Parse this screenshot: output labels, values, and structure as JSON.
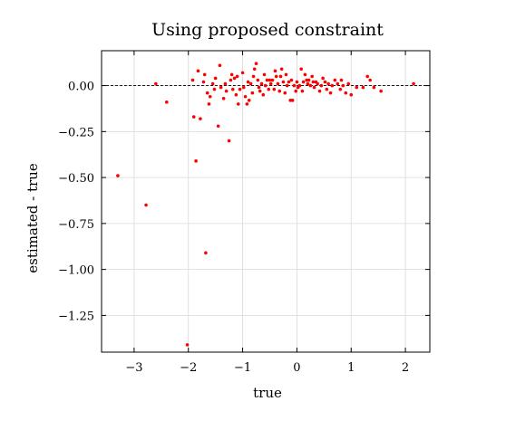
{
  "chart_data": {
    "type": "scatter",
    "title": "Using proposed constraint",
    "xlabel": "true",
    "ylabel": "estimated - true",
    "xlim": [
      -3.6,
      2.45
    ],
    "ylim": [
      -1.45,
      0.19
    ],
    "xticks": [
      -3,
      -2,
      -1,
      0,
      1,
      2
    ],
    "xtick_labels": [
      "−3",
      "−2",
      "−1",
      "0",
      "1",
      "2"
    ],
    "yticks": [
      0.0,
      -0.25,
      -0.5,
      -0.75,
      -1.0,
      -1.25
    ],
    "ytick_labels": [
      "0.00",
      "−0.25",
      "−0.50",
      "−0.75",
      "−1.00",
      "−1.25"
    ],
    "grid": true,
    "reference_line": {
      "y": 0,
      "style": "dashed",
      "color": "#000000"
    },
    "marker_color": "#ff0000",
    "series": [
      {
        "points": [
          [
            -3.3,
            -0.49
          ],
          [
            -2.78,
            -0.65
          ],
          [
            -2.6,
            0.01
          ],
          [
            -2.4,
            -0.09
          ],
          [
            -2.02,
            -1.41
          ],
          [
            -1.92,
            0.03
          ],
          [
            -1.9,
            -0.17
          ],
          [
            -1.86,
            -0.41
          ],
          [
            -1.82,
            0.08
          ],
          [
            -1.78,
            -0.18
          ],
          [
            -1.72,
            0.02
          ],
          [
            -1.7,
            0.06
          ],
          [
            -1.68,
            -0.91
          ],
          [
            -1.65,
            -0.04
          ],
          [
            -1.62,
            -0.1
          ],
          [
            -1.6,
            -0.06
          ],
          [
            -1.55,
            0.01
          ],
          [
            -1.52,
            -0.02
          ],
          [
            -1.5,
            0.04
          ],
          [
            -1.45,
            -0.22
          ],
          [
            -1.42,
            0.11
          ],
          [
            -1.4,
            -0.01
          ],
          [
            -1.35,
            -0.07
          ],
          [
            -1.32,
            0.01
          ],
          [
            -1.3,
            -0.03
          ],
          [
            -1.25,
            -0.3
          ],
          [
            -1.22,
            0.03
          ],
          [
            -1.2,
            0.06
          ],
          [
            -1.18,
            -0.02
          ],
          [
            -1.15,
            0.04
          ],
          [
            -1.12,
            -0.05
          ],
          [
            -1.1,
            0.05
          ],
          [
            -1.08,
            -0.1
          ],
          [
            -1.05,
            -0.02
          ],
          [
            -1.0,
            0.07
          ],
          [
            -0.98,
            -0.01
          ],
          [
            -0.95,
            -0.06
          ],
          [
            -0.92,
            -0.1
          ],
          [
            -0.9,
            0.02
          ],
          [
            -0.88,
            -0.08
          ],
          [
            -0.85,
            0.01
          ],
          [
            -0.82,
            -0.04
          ],
          [
            -0.8,
            0.05
          ],
          [
            -0.78,
            0.09
          ],
          [
            -0.75,
            0.12
          ],
          [
            -0.72,
            0.03
          ],
          [
            -0.7,
            -0.01
          ],
          [
            -0.68,
            -0.03
          ],
          [
            -0.65,
            0.01
          ],
          [
            -0.62,
            -0.05
          ],
          [
            -0.6,
            0.06
          ],
          [
            -0.58,
            0.0
          ],
          [
            -0.55,
            0.03
          ],
          [
            -0.52,
            -0.02
          ],
          [
            -0.5,
            0.03
          ],
          [
            -0.48,
            0.01
          ],
          [
            -0.45,
            0.03
          ],
          [
            -0.42,
            -0.02
          ],
          [
            -0.4,
            0.08
          ],
          [
            -0.38,
            0.05
          ],
          [
            -0.35,
            0.01
          ],
          [
            -0.32,
            -0.03
          ],
          [
            -0.3,
            0.05
          ],
          [
            -0.28,
            0.09
          ],
          [
            -0.25,
            0.02
          ],
          [
            -0.22,
            -0.04
          ],
          [
            -0.2,
            0.06
          ],
          [
            -0.18,
            0.0
          ],
          [
            -0.15,
            0.02
          ],
          [
            -0.12,
            -0.08
          ],
          [
            -0.1,
            0.03
          ],
          [
            -0.08,
            -0.08
          ],
          [
            -0.05,
            0.0
          ],
          [
            -0.02,
            -0.03
          ],
          [
            0.0,
            0.02
          ],
          [
            0.02,
            -0.01
          ],
          [
            0.05,
            0.0
          ],
          [
            0.08,
            0.09
          ],
          [
            0.1,
            -0.03
          ],
          [
            0.12,
            0.02
          ],
          [
            0.15,
            0.06
          ],
          [
            0.18,
            0.03
          ],
          [
            0.2,
            0.01
          ],
          [
            0.22,
            0.03
          ],
          [
            0.25,
            0.0
          ],
          [
            0.28,
            0.05
          ],
          [
            0.3,
            0.02
          ],
          [
            0.32,
            -0.01
          ],
          [
            0.35,
            0.02
          ],
          [
            0.38,
            0.01
          ],
          [
            0.42,
            -0.03
          ],
          [
            0.45,
            0.0
          ],
          [
            0.48,
            0.04
          ],
          [
            0.52,
            0.02
          ],
          [
            0.55,
            -0.02
          ],
          [
            0.58,
            0.01
          ],
          [
            0.62,
            -0.04
          ],
          [
            0.65,
            0.0
          ],
          [
            0.7,
            0.03
          ],
          [
            0.75,
            0.01
          ],
          [
            0.8,
            -0.02
          ],
          [
            0.82,
            0.03
          ],
          [
            0.85,
            0.0
          ],
          [
            0.9,
            -0.04
          ],
          [
            0.95,
            0.01
          ],
          [
            1.0,
            -0.05
          ],
          [
            1.1,
            -0.01
          ],
          [
            1.22,
            -0.01
          ],
          [
            1.3,
            0.05
          ],
          [
            1.35,
            0.03
          ],
          [
            1.42,
            -0.01
          ],
          [
            1.55,
            -0.03
          ],
          [
            2.15,
            0.01
          ]
        ]
      }
    ]
  }
}
